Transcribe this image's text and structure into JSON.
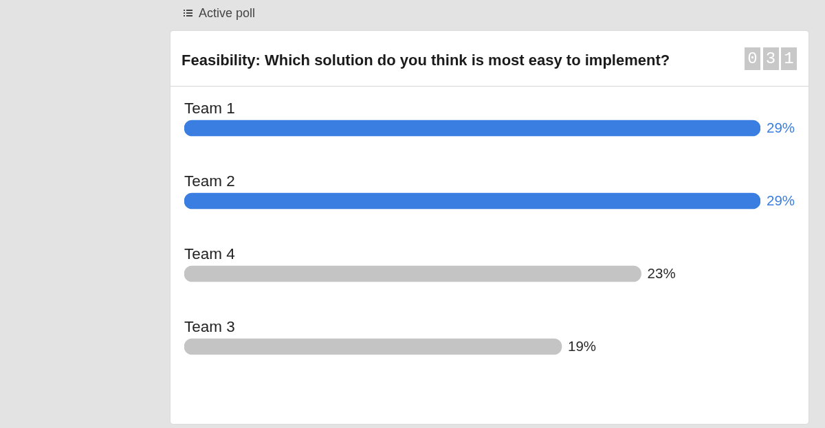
{
  "chart_data": {
    "type": "bar",
    "orientation": "horizontal",
    "title": "Feasibility: Which solution do you think is most easy to implement?",
    "categories": [
      "Team 1",
      "Team 2",
      "Team 4",
      "Team 3"
    ],
    "values": [
      29,
      29,
      23,
      19
    ],
    "colors": [
      "#3b7ee1",
      "#3b7ee1",
      "#c4c4c4",
      "#c4c4c4"
    ],
    "value_labels": [
      "29%",
      "29%",
      "23%",
      "19%"
    ],
    "annotations": [
      "Active poll",
      "031"
    ]
  }
}
